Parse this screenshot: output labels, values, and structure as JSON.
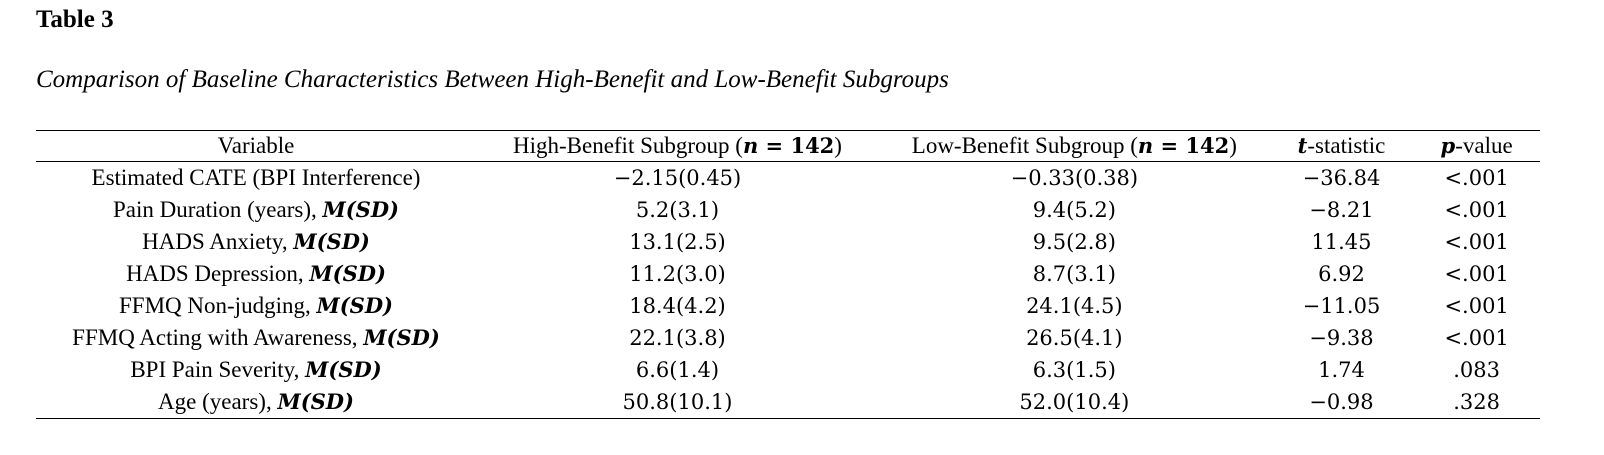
{
  "table_label": "Table 3",
  "table_caption": "Comparison of Baseline Characteristics Between High-Benefit and Low-Benefit Subgroups",
  "header": {
    "variable": "Variable",
    "high_prefix": "High-Benefit Subgroup (",
    "high_n_var": "n",
    "high_n_eq": " = ",
    "high_n_val": "142",
    "high_suffix": ")",
    "low_prefix": "Low-Benefit Subgroup (",
    "low_n_var": "n",
    "low_n_eq": " = ",
    "low_n_val": "142",
    "low_suffix": ")",
    "t_var": "t",
    "t_rest": "-statistic",
    "p_var": "p",
    "p_rest": "-value"
  },
  "rows": [
    {
      "variable": "Estimated CATE (BPI Interference)",
      "stat": "",
      "high": "−2.15(0.45)",
      "low": "−0.33(0.38)",
      "t": "−36.84",
      "p": "<.001"
    },
    {
      "variable": "Pain Duration (years), ",
      "stat": "M(SD)",
      "high": "5.2(3.1)",
      "low": "9.4(5.2)",
      "t": "−8.21",
      "p": "<.001"
    },
    {
      "variable": "HADS Anxiety, ",
      "stat": "M(SD)",
      "high": "13.1(2.5)",
      "low": "9.5(2.8)",
      "t": "11.45",
      "p": "<.001"
    },
    {
      "variable": "HADS Depression, ",
      "stat": "M(SD)",
      "high": "11.2(3.0)",
      "low": "8.7(3.1)",
      "t": "6.92",
      "p": "<.001"
    },
    {
      "variable": "FFMQ Non-judging, ",
      "stat": "M(SD)",
      "high": "18.4(4.2)",
      "low": "24.1(4.5)",
      "t": "−11.05",
      "p": "<.001"
    },
    {
      "variable": "FFMQ Acting with Awareness, ",
      "stat": "M(SD)",
      "high": "22.1(3.8)",
      "low": "26.5(4.1)",
      "t": "−9.38",
      "p": "<.001"
    },
    {
      "variable": "BPI Pain Severity, ",
      "stat": "M(SD)",
      "high": "6.6(1.4)",
      "low": "6.3(1.5)",
      "t": "1.74",
      "p": ".083"
    },
    {
      "variable": "Age (years), ",
      "stat": "M(SD)",
      "high": "50.8(10.1)",
      "low": "52.0(10.4)",
      "t": "−0.98",
      "p": ".328"
    }
  ]
}
